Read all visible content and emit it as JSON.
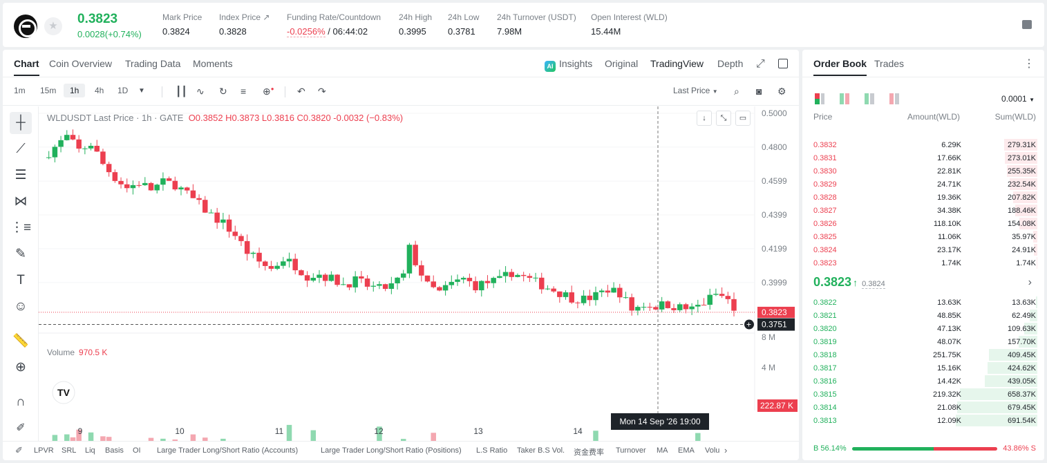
{
  "ticker": {
    "last_price": "0.3823",
    "change": "0.0028(+0.74%)",
    "stats": [
      {
        "label": "Mark Price",
        "value": "0.3824"
      },
      {
        "label": "Index Price ↗",
        "value": "0.3828"
      },
      {
        "label": "Funding Rate/Countdown",
        "value_neg": "-0.0256%",
        "value": "/ 06:44:02"
      },
      {
        "label": "24h High",
        "value": "0.3995"
      },
      {
        "label": "24h Low",
        "value": "0.3781"
      },
      {
        "label": "24h Turnover (USDT)",
        "value": "7.98M"
      },
      {
        "label": "Open Interest (WLD)",
        "value": "15.44M"
      }
    ]
  },
  "chart_tabs": [
    "Chart",
    "Coin Overview",
    "Trading Data",
    "Moments"
  ],
  "view_tabs": [
    "Insights",
    "Original",
    "TradingView",
    "Depth"
  ],
  "ai_badge": "AI",
  "timeframes": [
    "1m",
    "15m",
    "1h",
    "4h",
    "1D"
  ],
  "price_type": "Last Price",
  "legend": {
    "symbol": "WLDUSDT Last Price · 1h · GATE",
    "ohlc": "O0.3852  H0.3873  L0.3816  C0.3820  -0.0032 (−0.83%)"
  },
  "volume_legend": {
    "label": "Volume",
    "value": "970.5 K"
  },
  "crosshair": {
    "date_label": "Mon 14 Sep '26   19:00",
    "price_label": "0.3751"
  },
  "indicators": [
    "LPVR",
    "SRL",
    "Liq",
    "Basis",
    "OI",
    "Large Trader Long/Short Ratio (Accounts)",
    "Large Trader Long/Short Ratio (Positions)",
    "L.S Ratio",
    "Taker B.S Vol.",
    "资金费率",
    "Turnover",
    "MA",
    "EMA",
    "Volu"
  ],
  "colors": {
    "up": "#21b15c",
    "down": "#ec3f4f",
    "up_vol": "#8fd9b0",
    "down_vol": "#f4a7b0"
  },
  "chart_data": {
    "type": "candlestick",
    "symbol": "WLDUSDT",
    "interval": "1h",
    "x_ticks": [
      "9",
      "10",
      "11",
      "12",
      "13",
      "14"
    ],
    "y_ticks": [
      "0.5000",
      "0.4800",
      "0.4599",
      "0.4399",
      "0.4199",
      "0.3999"
    ],
    "y_range": [
      0.37,
      0.5
    ],
    "volume_ticks": [
      "8 M",
      "4 M"
    ],
    "volume_range": [
      0,
      8
    ],
    "last_price_label": "0.3823",
    "last_volume_label": "222.87 K",
    "close_path": [
      [
        0,
        0.474
      ],
      [
        4,
        0.48
      ],
      [
        8,
        0.486
      ],
      [
        12,
        0.478
      ],
      [
        16,
        0.482
      ],
      [
        20,
        0.47
      ],
      [
        24,
        0.462
      ],
      [
        28,
        0.456
      ],
      [
        32,
        0.459
      ],
      [
        36,
        0.455
      ],
      [
        40,
        0.459
      ],
      [
        44,
        0.458
      ],
      [
        48,
        0.452
      ],
      [
        52,
        0.446
      ],
      [
        56,
        0.44
      ],
      [
        60,
        0.435
      ],
      [
        64,
        0.428
      ],
      [
        68,
        0.418
      ],
      [
        72,
        0.412
      ],
      [
        76,
        0.408
      ],
      [
        80,
        0.414
      ],
      [
        84,
        0.41
      ],
      [
        88,
        0.404
      ],
      [
        92,
        0.405
      ],
      [
        96,
        0.402
      ],
      [
        100,
        0.399
      ],
      [
        104,
        0.401
      ],
      [
        108,
        0.398
      ],
      [
        112,
        0.396
      ],
      [
        116,
        0.398
      ],
      [
        120,
        0.404
      ],
      [
        122,
        0.42
      ],
      [
        124,
        0.412
      ],
      [
        128,
        0.398
      ],
      [
        132,
        0.394
      ],
      [
        136,
        0.399
      ],
      [
        140,
        0.402
      ],
      [
        144,
        0.398
      ],
      [
        148,
        0.4
      ],
      [
        152,
        0.401
      ],
      [
        156,
        0.406
      ],
      [
        160,
        0.403
      ],
      [
        164,
        0.4
      ],
      [
        168,
        0.397
      ],
      [
        172,
        0.394
      ],
      [
        176,
        0.391
      ],
      [
        180,
        0.39
      ],
      [
        184,
        0.392
      ],
      [
        188,
        0.396
      ],
      [
        192,
        0.394
      ],
      [
        196,
        0.384
      ],
      [
        200,
        0.387
      ],
      [
        204,
        0.386
      ],
      [
        208,
        0.387
      ],
      [
        212,
        0.385
      ],
      [
        216,
        0.384
      ],
      [
        220,
        0.388
      ],
      [
        224,
        0.393
      ],
      [
        228,
        0.39
      ],
      [
        230,
        0.382
      ]
    ],
    "hours": 230,
    "volume_shape_M": [
      [
        0,
        2.4
      ],
      [
        10,
        3.0
      ],
      [
        20,
        2.2
      ],
      [
        30,
        1.8
      ],
      [
        40,
        2.0
      ],
      [
        50,
        2.4
      ],
      [
        60,
        2.2
      ],
      [
        70,
        1.5
      ],
      [
        80,
        1.6
      ],
      [
        90,
        1.1
      ],
      [
        100,
        0.9
      ],
      [
        110,
        0.8
      ],
      [
        120,
        2.0
      ],
      [
        130,
        1.0
      ],
      [
        140,
        0.8
      ],
      [
        150,
        0.8
      ],
      [
        160,
        0.7
      ],
      [
        170,
        0.7
      ],
      [
        180,
        0.6
      ],
      [
        190,
        1.0
      ],
      [
        200,
        0.9
      ],
      [
        210,
        0.6
      ],
      [
        220,
        0.6
      ],
      [
        230,
        0.22
      ]
    ]
  },
  "orderbook": {
    "tabs": [
      "Order Book",
      "Trades"
    ],
    "precision": "0.0001",
    "columns": [
      "Price",
      "Amount(WLD)",
      "Sum(WLD)"
    ],
    "asks": [
      {
        "price": "0.3832",
        "amount": "6.29K",
        "sum": "279.31K",
        "depth": 0.41
      },
      {
        "price": "0.3831",
        "amount": "17.66K",
        "sum": "273.01K",
        "depth": 0.4
      },
      {
        "price": "0.3830",
        "amount": "22.81K",
        "sum": "255.35K",
        "depth": 0.37
      },
      {
        "price": "0.3829",
        "amount": "24.71K",
        "sum": "232.54K",
        "depth": 0.34
      },
      {
        "price": "0.3828",
        "amount": "19.36K",
        "sum": "207.82K",
        "depth": 0.3
      },
      {
        "price": "0.3827",
        "amount": "34.38K",
        "sum": "188.46K",
        "depth": 0.27
      },
      {
        "price": "0.3826",
        "amount": "118.10K",
        "sum": "154.08K",
        "depth": 0.22
      },
      {
        "price": "0.3825",
        "amount": "11.06K",
        "sum": "35.97K",
        "depth": 0.05
      },
      {
        "price": "0.3824",
        "amount": "23.17K",
        "sum": "24.91K",
        "depth": 0.04
      },
      {
        "price": "0.3823",
        "amount": "1.74K",
        "sum": "1.74K",
        "depth": 0.01
      }
    ],
    "mid": {
      "price": "0.3823",
      "arrow": "↑",
      "mark": "0.3824"
    },
    "bids": [
      {
        "price": "0.3822",
        "amount": "13.63K",
        "sum": "13.63K",
        "depth": 0.02
      },
      {
        "price": "0.3821",
        "amount": "48.85K",
        "sum": "62.49K",
        "depth": 0.09
      },
      {
        "price": "0.3820",
        "amount": "47.13K",
        "sum": "109.63K",
        "depth": 0.16
      },
      {
        "price": "0.3819",
        "amount": "48.07K",
        "sum": "157.70K",
        "depth": 0.23
      },
      {
        "price": "0.3818",
        "amount": "251.75K",
        "sum": "409.45K",
        "depth": 0.59
      },
      {
        "price": "0.3817",
        "amount": "15.16K",
        "sum": "424.62K",
        "depth": 0.61
      },
      {
        "price": "0.3816",
        "amount": "14.42K",
        "sum": "439.05K",
        "depth": 0.64
      },
      {
        "price": "0.3815",
        "amount": "219.32K",
        "sum": "658.37K",
        "depth": 0.95
      },
      {
        "price": "0.3814",
        "amount": "21.08K",
        "sum": "679.45K",
        "depth": 0.98
      },
      {
        "price": "0.3813",
        "amount": "12.09K",
        "sum": "691.54K",
        "depth": 1.0
      }
    ],
    "buy_ratio": "B 56.14%",
    "sell_ratio": "43.86% S",
    "buy_fraction": 0.5614
  }
}
